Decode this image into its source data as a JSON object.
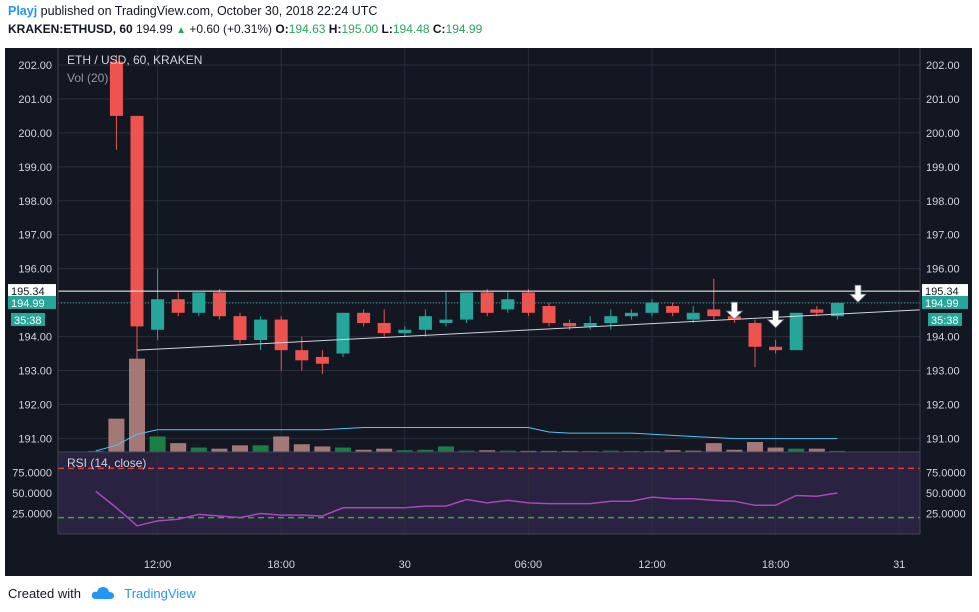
{
  "header": {
    "author": "Playj",
    "published_text": "published on TradingView.com, October 30, 2018 22:24 UTC",
    "symbol": "KRAKEN:ETHUSD, 60",
    "last": "194.99",
    "change": "+0.60 (+0.31%)",
    "o_label": "O:",
    "o_val": "194.63",
    "h_label": "H:",
    "h_val": "195.00",
    "l_label": "L:",
    "l_val": "194.48",
    "c_label": "C:",
    "c_val": "194.99"
  },
  "footer": {
    "created_with": "Created with",
    "brand": "TradingView"
  },
  "chart_data": {
    "type": "candlestick",
    "title": "ETH / USD, 60, KRAKEN",
    "volume_label": "Vol (20)",
    "rsi_label": "RSI (14, close)",
    "price_ticks": [
      "202.00",
      "201.00",
      "200.00",
      "199.00",
      "198.00",
      "197.00",
      "196.00",
      "195.00",
      "194.00",
      "193.00",
      "192.00",
      "191.00"
    ],
    "price_range": [
      190.6,
      202.5
    ],
    "x_ticks": [
      {
        "label": "12:00",
        "i": 3
      },
      {
        "label": "18:00",
        "i": 9
      },
      {
        "label": "30",
        "i": 15
      },
      {
        "label": "06:00",
        "i": 21
      },
      {
        "label": "12:00",
        "i": 27
      },
      {
        "label": "18:00",
        "i": 33
      },
      {
        "label": "31",
        "i": 39
      }
    ],
    "horizontal_line": {
      "value": 195.34,
      "label": "195.34"
    },
    "last_price": {
      "value": 194.99,
      "label": "194.99",
      "countdown": "35:38"
    },
    "trendline": {
      "from": {
        "i": 2,
        "v": 193.6
      },
      "to": {
        "i": 42,
        "v": 194.85
      }
    },
    "arrows_at": [
      {
        "i": 31,
        "v": 194.6
      },
      {
        "i": 33,
        "v": 194.35
      },
      {
        "i": 37,
        "v": 195.1
      }
    ],
    "candles": [
      {
        "i": 1,
        "o": 202.1,
        "h": 202.3,
        "l": 199.5,
        "c": 200.5
      },
      {
        "i": 2,
        "o": 200.5,
        "h": 200.5,
        "l": 193.2,
        "c": 194.3
      },
      {
        "i": 3,
        "o": 194.2,
        "h": 196.0,
        "l": 193.9,
        "c": 195.1
      },
      {
        "i": 4,
        "o": 195.1,
        "h": 195.3,
        "l": 194.6,
        "c": 194.7
      },
      {
        "i": 5,
        "o": 194.7,
        "h": 195.3,
        "l": 194.6,
        "c": 195.3
      },
      {
        "i": 6,
        "o": 195.3,
        "h": 195.4,
        "l": 194.5,
        "c": 194.6
      },
      {
        "i": 7,
        "o": 194.6,
        "h": 194.7,
        "l": 193.8,
        "c": 193.9
      },
      {
        "i": 8,
        "o": 193.9,
        "h": 194.6,
        "l": 193.6,
        "c": 194.5
      },
      {
        "i": 9,
        "o": 194.5,
        "h": 194.6,
        "l": 193.0,
        "c": 193.6
      },
      {
        "i": 10,
        "o": 193.6,
        "h": 194.0,
        "l": 193.0,
        "c": 193.3
      },
      {
        "i": 11,
        "o": 193.4,
        "h": 193.6,
        "l": 192.9,
        "c": 193.2
      },
      {
        "i": 12,
        "o": 193.5,
        "h": 194.7,
        "l": 193.4,
        "c": 194.7
      },
      {
        "i": 13,
        "o": 194.7,
        "h": 194.8,
        "l": 194.3,
        "c": 194.4
      },
      {
        "i": 14,
        "o": 194.4,
        "h": 194.8,
        "l": 194.0,
        "c": 194.1
      },
      {
        "i": 15,
        "o": 194.1,
        "h": 194.3,
        "l": 194.0,
        "c": 194.2
      },
      {
        "i": 16,
        "o": 194.2,
        "h": 194.8,
        "l": 194.0,
        "c": 194.6
      },
      {
        "i": 17,
        "o": 194.4,
        "h": 195.3,
        "l": 194.3,
        "c": 194.5
      },
      {
        "i": 18,
        "o": 194.5,
        "h": 195.3,
        "l": 194.4,
        "c": 195.3
      },
      {
        "i": 19,
        "o": 195.3,
        "h": 195.4,
        "l": 194.6,
        "c": 194.7
      },
      {
        "i": 20,
        "o": 194.8,
        "h": 195.3,
        "l": 194.7,
        "c": 195.1
      },
      {
        "i": 21,
        "o": 195.3,
        "h": 195.4,
        "l": 194.6,
        "c": 194.7
      },
      {
        "i": 22,
        "o": 194.9,
        "h": 195.0,
        "l": 194.3,
        "c": 194.4
      },
      {
        "i": 23,
        "o": 194.4,
        "h": 194.5,
        "l": 194.2,
        "c": 194.3
      },
      {
        "i": 24,
        "o": 194.3,
        "h": 194.6,
        "l": 194.2,
        "c": 194.4
      },
      {
        "i": 25,
        "o": 194.4,
        "h": 194.8,
        "l": 194.2,
        "c": 194.6
      },
      {
        "i": 26,
        "o": 194.6,
        "h": 194.8,
        "l": 194.5,
        "c": 194.7
      },
      {
        "i": 27,
        "o": 194.7,
        "h": 195.1,
        "l": 194.6,
        "c": 195.0
      },
      {
        "i": 28,
        "o": 194.9,
        "h": 195.0,
        "l": 194.6,
        "c": 194.7
      },
      {
        "i": 29,
        "o": 194.5,
        "h": 194.9,
        "l": 194.4,
        "c": 194.7
      },
      {
        "i": 30,
        "o": 194.8,
        "h": 195.7,
        "l": 194.5,
        "c": 194.6
      },
      {
        "i": 31,
        "o": 194.6,
        "h": 194.7,
        "l": 194.4,
        "c": 194.5
      },
      {
        "i": 32,
        "o": 194.4,
        "h": 194.5,
        "l": 193.1,
        "c": 193.7
      },
      {
        "i": 33,
        "o": 193.7,
        "h": 193.9,
        "l": 193.5,
        "c": 193.6
      },
      {
        "i": 34,
        "o": 193.6,
        "h": 194.7,
        "l": 193.6,
        "c": 194.7
      },
      {
        "i": 35,
        "o": 194.8,
        "h": 194.9,
        "l": 194.6,
        "c": 194.7
      },
      {
        "i": 36,
        "o": 194.6,
        "h": 195.0,
        "l": 194.5,
        "c": 194.99
      }
    ],
    "volume": [
      {
        "i": 0,
        "v": 0.5,
        "up": true
      },
      {
        "i": 1,
        "v": 15,
        "up": false
      },
      {
        "i": 2,
        "v": 42,
        "up": false
      },
      {
        "i": 3,
        "v": 7,
        "up": true
      },
      {
        "i": 4,
        "v": 4,
        "up": false
      },
      {
        "i": 5,
        "v": 2,
        "up": true
      },
      {
        "i": 6,
        "v": 1.5,
        "up": false
      },
      {
        "i": 7,
        "v": 3,
        "up": false
      },
      {
        "i": 8,
        "v": 3,
        "up": true
      },
      {
        "i": 9,
        "v": 7,
        "up": false
      },
      {
        "i": 10,
        "v": 3.5,
        "up": false
      },
      {
        "i": 11,
        "v": 2.5,
        "up": false
      },
      {
        "i": 12,
        "v": 2,
        "up": true
      },
      {
        "i": 13,
        "v": 1,
        "up": false
      },
      {
        "i": 14,
        "v": 1.5,
        "up": false
      },
      {
        "i": 15,
        "v": 0.8,
        "up": true
      },
      {
        "i": 16,
        "v": 1,
        "up": true
      },
      {
        "i": 17,
        "v": 2.5,
        "up": true
      },
      {
        "i": 18,
        "v": 0.6,
        "up": true
      },
      {
        "i": 19,
        "v": 0.8,
        "up": false
      },
      {
        "i": 20,
        "v": 0.6,
        "up": true
      },
      {
        "i": 21,
        "v": 0.5,
        "up": false
      },
      {
        "i": 22,
        "v": 0.5,
        "up": false
      },
      {
        "i": 23,
        "v": 0.5,
        "up": false
      },
      {
        "i": 24,
        "v": 0.5,
        "up": true
      },
      {
        "i": 25,
        "v": 0.6,
        "up": true
      },
      {
        "i": 26,
        "v": 0.5,
        "up": true
      },
      {
        "i": 27,
        "v": 0.5,
        "up": true
      },
      {
        "i": 28,
        "v": 0.8,
        "up": false
      },
      {
        "i": 29,
        "v": 0.6,
        "up": false
      },
      {
        "i": 30,
        "v": 4,
        "up": false
      },
      {
        "i": 31,
        "v": 1,
        "up": false
      },
      {
        "i": 32,
        "v": 4.5,
        "up": false
      },
      {
        "i": 33,
        "v": 2,
        "up": false
      },
      {
        "i": 34,
        "v": 1.5,
        "up": true
      },
      {
        "i": 35,
        "v": 1.5,
        "up": false
      },
      {
        "i": 36,
        "v": 0.5,
        "up": true
      }
    ],
    "volume_ma": [
      0.5,
      3,
      8,
      10,
      10,
      10,
      10,
      10,
      10,
      10,
      10,
      10,
      10.5,
      11,
      11,
      11,
      11,
      11,
      11,
      11,
      11,
      11,
      9,
      8.5,
      8.5,
      8.5,
      8.5,
      8,
      7.5,
      7,
      6.5,
      6,
      6,
      6,
      6,
      6,
      6
    ],
    "volume_max": 45,
    "rsi_ticks": [
      "75.0000",
      "50.0000",
      "25.0000"
    ],
    "rsi_range": [
      0,
      100
    ],
    "rsi_levels": {
      "upper": 80,
      "lower": 20
    },
    "rsi": [
      52,
      32,
      10,
      16,
      18,
      24,
      22,
      20,
      25,
      23,
      23,
      22,
      32,
      32,
      32,
      32,
      34,
      34,
      42,
      38,
      41,
      38,
      37,
      37,
      37,
      40,
      40,
      45,
      43,
      43,
      41,
      40,
      35,
      35,
      47,
      46,
      50
    ]
  }
}
